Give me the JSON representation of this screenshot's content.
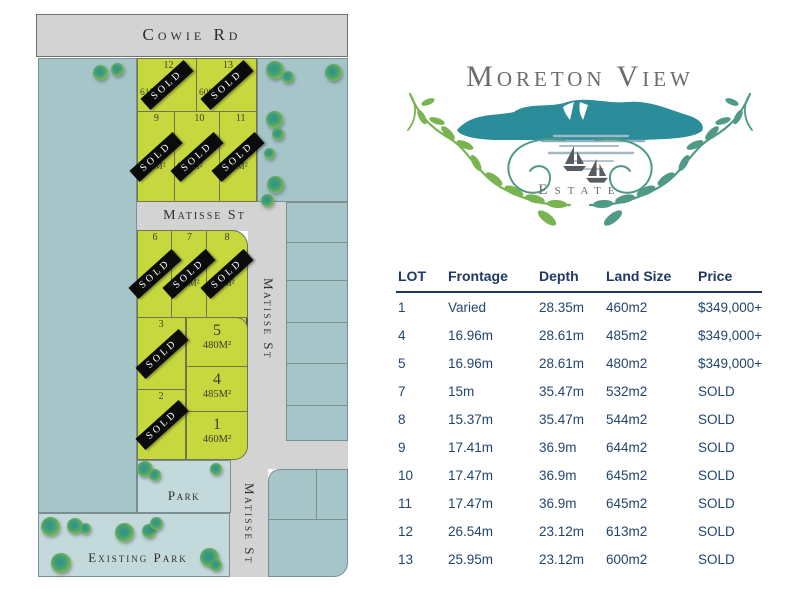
{
  "map": {
    "roads": {
      "cowie_rd": "Cowie Rd",
      "matisse_st_horizontal": "Matisse St",
      "matisse_st_vertical_upper": "Matisse St",
      "matisse_st_vertical_lower": "Matisse St"
    },
    "areas": {
      "park": "Park",
      "existing_park": "Existing Park"
    },
    "sold_banner": "SOLD",
    "lots": {
      "l1": {
        "number": "1",
        "area": "460M²"
      },
      "l2": {
        "number": "2",
        "area": ""
      },
      "l3": {
        "number": "3",
        "area": ""
      },
      "l4": {
        "number": "4",
        "area": "485M²"
      },
      "l5": {
        "number": "5",
        "area": "480M²"
      },
      "l6": {
        "number": "6",
        "area": ""
      },
      "l7": {
        "number": "7",
        "area": "532M²"
      },
      "l8": {
        "number": "8",
        "area": "544M²"
      },
      "l9": {
        "number": "9",
        "area": "644M²"
      },
      "l10": {
        "number": "10",
        "area": "645M²"
      },
      "l11": {
        "number": "11",
        "area": "645M²"
      },
      "l12": {
        "number": "12",
        "area": "613M²"
      },
      "l13": {
        "number": "13",
        "area": "600M²"
      }
    }
  },
  "logo": {
    "title": "Moreton View",
    "subtitle": "Estate"
  },
  "table": {
    "columns": [
      "LOT",
      "Frontage",
      "Depth",
      "Land Size",
      "Price"
    ],
    "rows": [
      {
        "lot": "1",
        "frontage": "Varied",
        "depth": "28.35m",
        "land_size": "460m2",
        "price": "$349,000+"
      },
      {
        "lot": "4",
        "frontage": "16.96m",
        "depth": "28.61m",
        "land_size": "485m2",
        "price": "$349,000+"
      },
      {
        "lot": "5",
        "frontage": "16.96m",
        "depth": "28.61m",
        "land_size": "480m2",
        "price": "$349,000+"
      },
      {
        "lot": "7",
        "frontage": "15m",
        "depth": "35.47m",
        "land_size": "532m2",
        "price": "SOLD"
      },
      {
        "lot": "8",
        "frontage": "15.37m",
        "depth": "35.47m",
        "land_size": "544m2",
        "price": "SOLD"
      },
      {
        "lot": "9",
        "frontage": "17.41m",
        "depth": "36.9m",
        "land_size": "644m2",
        "price": "SOLD"
      },
      {
        "lot": "10",
        "frontage": "17.47m",
        "depth": "36.9m",
        "land_size": "645m2",
        "price": "SOLD"
      },
      {
        "lot": "11",
        "frontage": "17.47m",
        "depth": "36.9m",
        "land_size": "645m2",
        "price": "SOLD"
      },
      {
        "lot": "12",
        "frontage": "26.54m",
        "depth": "23.12m",
        "land_size": "613m2",
        "price": "SOLD"
      },
      {
        "lot": "13",
        "frontage": "25.95m",
        "depth": "23.12m",
        "land_size": "600m2",
        "price": "SOLD"
      }
    ]
  },
  "colors": {
    "lot_green": "#c6d83e",
    "water_blue": "#a6c5c9",
    "park_blue": "#c3d9db",
    "road_grey": "#d3d3d3",
    "table_navy": "#1f3864",
    "logo_grey": "#6c6c6c",
    "island_teal": "#2b8c9a",
    "vine_green": "#79b450",
    "vine_teal": "#4f9a86"
  }
}
